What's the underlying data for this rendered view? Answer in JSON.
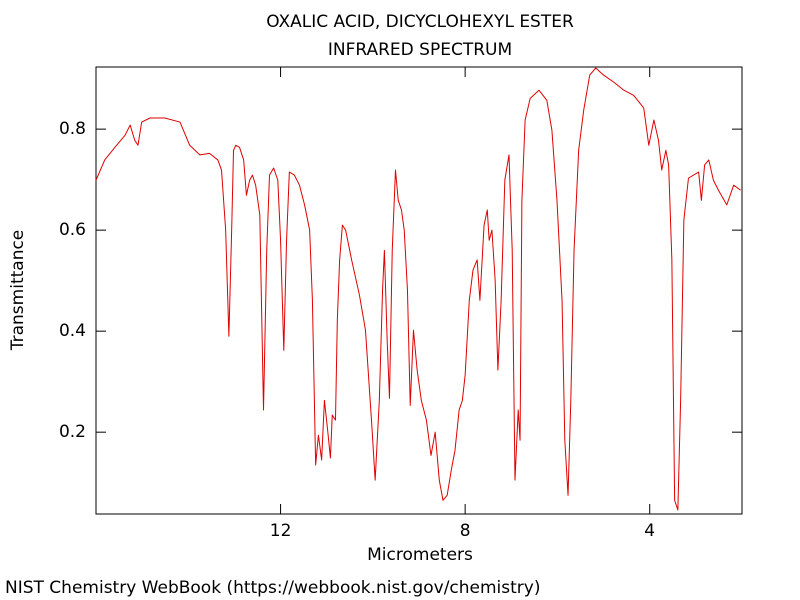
{
  "chart_data": {
    "type": "line",
    "title": "OXALIC ACID, DICYCLOHEXYL ESTER",
    "subtitle": "INFRARED SPECTRUM",
    "x_label": "Micrometers",
    "y_label": "Transmittance",
    "source": "NIST Chemistry WebBook (https://webbook.nist.gov/chemistry)",
    "color": "#e00000",
    "xlim": [
      16,
      2
    ],
    "ylim": [
      0.038,
      0.923
    ],
    "xticks": [
      12,
      8,
      4
    ],
    "yticks": [
      0.2,
      0.4,
      0.6,
      0.8
    ],
    "x": [
      16.0,
      15.81,
      15.59,
      15.37,
      15.26,
      15.16,
      15.09,
      15.01,
      14.83,
      14.51,
      14.18,
      13.97,
      13.75,
      13.54,
      13.36,
      13.28,
      13.19,
      13.12,
      13.06,
      13.02,
      12.97,
      12.89,
      12.8,
      12.74,
      12.67,
      12.61,
      12.54,
      12.45,
      12.37,
      12.3,
      12.24,
      12.15,
      12.06,
      12.0,
      11.93,
      11.87,
      11.81,
      11.7,
      11.59,
      11.48,
      11.37,
      11.31,
      11.24,
      11.18,
      11.11,
      11.05,
      10.98,
      10.92,
      10.88,
      10.81,
      10.77,
      10.72,
      10.66,
      10.59,
      10.46,
      10.29,
      10.16,
      10.03,
      9.95,
      9.86,
      9.79,
      9.75,
      9.69,
      9.64,
      9.58,
      9.51,
      9.45,
      9.38,
      9.32,
      9.25,
      9.19,
      9.12,
      9.04,
      8.95,
      8.84,
      8.74,
      8.65,
      8.56,
      8.48,
      8.39,
      8.3,
      8.22,
      8.13,
      8.06,
      8.0,
      7.91,
      7.83,
      7.74,
      7.68,
      7.59,
      7.52,
      7.48,
      7.42,
      7.35,
      7.29,
      7.22,
      7.14,
      7.05,
      6.98,
      6.92,
      6.85,
      6.81,
      6.77,
      6.7,
      6.59,
      6.4,
      6.23,
      6.12,
      6.01,
      5.9,
      5.84,
      5.77,
      5.71,
      5.64,
      5.54,
      5.43,
      5.3,
      5.17,
      5.0,
      4.78,
      4.56,
      4.35,
      4.13,
      4.02,
      3.91,
      3.81,
      3.74,
      3.65,
      3.59,
      3.52,
      3.46,
      3.39,
      3.33,
      3.26,
      3.16,
      2.94,
      2.88,
      2.81,
      2.72,
      2.62,
      2.51,
      2.33,
      2.18,
      2.03
    ],
    "values": [
      0.699,
      0.739,
      0.764,
      0.788,
      0.808,
      0.778,
      0.768,
      0.814,
      0.822,
      0.822,
      0.814,
      0.768,
      0.749,
      0.752,
      0.739,
      0.719,
      0.6,
      0.39,
      0.6,
      0.758,
      0.768,
      0.764,
      0.739,
      0.669,
      0.699,
      0.709,
      0.689,
      0.63,
      0.244,
      0.56,
      0.709,
      0.723,
      0.699,
      0.58,
      0.362,
      0.58,
      0.715,
      0.709,
      0.689,
      0.65,
      0.6,
      0.461,
      0.135,
      0.194,
      0.145,
      0.263,
      0.204,
      0.149,
      0.234,
      0.224,
      0.422,
      0.541,
      0.61,
      0.6,
      0.541,
      0.471,
      0.402,
      0.224,
      0.105,
      0.263,
      0.481,
      0.56,
      0.382,
      0.267,
      0.56,
      0.719,
      0.659,
      0.64,
      0.6,
      0.481,
      0.253,
      0.402,
      0.323,
      0.263,
      0.224,
      0.154,
      0.2,
      0.105,
      0.065,
      0.075,
      0.125,
      0.164,
      0.244,
      0.263,
      0.313,
      0.461,
      0.521,
      0.541,
      0.461,
      0.61,
      0.64,
      0.58,
      0.6,
      0.501,
      0.323,
      0.461,
      0.699,
      0.749,
      0.56,
      0.105,
      0.244,
      0.184,
      0.659,
      0.818,
      0.861,
      0.877,
      0.857,
      0.798,
      0.659,
      0.461,
      0.184,
      0.075,
      0.263,
      0.56,
      0.758,
      0.838,
      0.907,
      0.921,
      0.907,
      0.893,
      0.877,
      0.867,
      0.842,
      0.768,
      0.818,
      0.778,
      0.719,
      0.758,
      0.729,
      0.541,
      0.065,
      0.046,
      0.263,
      0.62,
      0.703,
      0.715,
      0.659,
      0.729,
      0.739,
      0.699,
      0.679,
      0.65,
      0.689,
      0.679
    ]
  }
}
